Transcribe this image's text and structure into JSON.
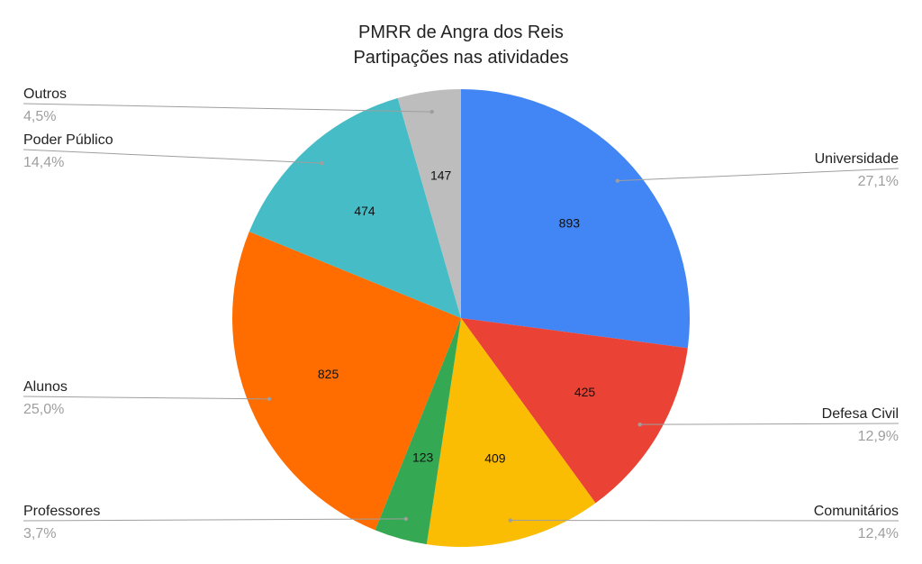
{
  "chart_data": {
    "type": "pie",
    "title": "PMRR de Angra dos Reis",
    "subtitle": "Partipações nas atividades",
    "slices": [
      {
        "label": "Universidade",
        "value": 893,
        "percent_label": "27,1%",
        "color": "#4285F4"
      },
      {
        "label": "Defesa Civil",
        "value": 425,
        "percent_label": "12,9%",
        "color": "#EA4335"
      },
      {
        "label": "Comunitários",
        "value": 409,
        "percent_label": "12,4%",
        "color": "#FBBC04"
      },
      {
        "label": "Professores",
        "value": 123,
        "percent_label": "3,7%",
        "color": "#34A853"
      },
      {
        "label": "Alunos",
        "value": 825,
        "percent_label": "25,0%",
        "color": "#FF6D01"
      },
      {
        "label": "Poder Público",
        "value": 474,
        "percent_label": "14,4%",
        "color": "#46BDC6"
      },
      {
        "label": "Outros",
        "value": 147,
        "percent_label": "4,5%",
        "color": "#BDBDBD"
      }
    ],
    "legend": "none"
  }
}
